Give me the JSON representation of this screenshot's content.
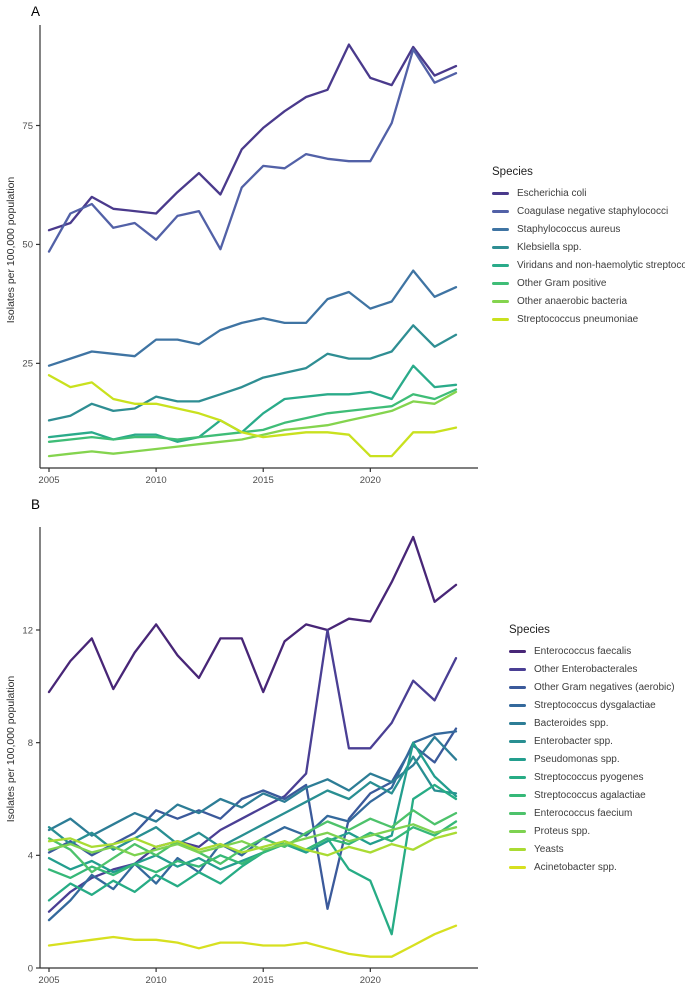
{
  "figure": {
    "background": "#ffffff"
  },
  "chart_data": [
    {
      "type": "line",
      "panel_label": "A",
      "ylabel": "Isolates per 100,000 population",
      "legend_title": "Species",
      "legend_position": "right",
      "grid": false,
      "xlim": [
        2005,
        2024
      ],
      "ylim": [
        3,
        95.5
      ],
      "x_ticks": [
        2005,
        2010,
        2015,
        2020
      ],
      "y_ticks": [
        25,
        50,
        75
      ],
      "x": [
        2005,
        2006,
        2007,
        2008,
        2009,
        2010,
        2011,
        2012,
        2013,
        2014,
        2015,
        2016,
        2017,
        2018,
        2019,
        2020,
        2021,
        2022,
        2023,
        2024
      ],
      "series": [
        {
          "name": "Escherichia coli",
          "color": "#4a3a8c",
          "values": [
            53,
            54.5,
            60,
            57.5,
            57,
            56.5,
            61,
            65,
            60.5,
            70,
            74.5,
            78,
            81,
            82.5,
            92,
            85,
            83.5,
            91.5,
            85.5,
            87.5
          ]
        },
        {
          "name": "Coagulase negative staphylococci",
          "color": "#5261a7",
          "values": [
            48.5,
            56.5,
            58.5,
            53.5,
            54.5,
            51,
            56,
            57,
            49,
            62,
            66.5,
            66,
            69,
            68,
            67.5,
            67.5,
            75.5,
            91,
            84,
            86
          ]
        },
        {
          "name": "Staphylococcus aureus",
          "color": "#3f74a3",
          "values": [
            24.5,
            26,
            27.5,
            27,
            26.5,
            30,
            30,
            29,
            32,
            33.5,
            34.5,
            33.5,
            33.5,
            38.5,
            40,
            36.5,
            38,
            44.5,
            39,
            41
          ]
        },
        {
          "name": "Klebsiella spp.",
          "color": "#2f8e93",
          "values": [
            13,
            14,
            16.5,
            15,
            15.5,
            18,
            17,
            17,
            18.5,
            20,
            22,
            23,
            24,
            27,
            26,
            26,
            27.5,
            33,
            28.5,
            31
          ]
        },
        {
          "name": "Viridans and non-haemolytic streptococci",
          "color": "#2aab8a",
          "values": [
            9.5,
            10,
            10.5,
            9,
            10,
            10,
            8.5,
            9.5,
            13,
            10.5,
            14.5,
            17.5,
            18,
            18.5,
            18.5,
            19,
            17.5,
            24.5,
            20,
            20.5
          ]
        },
        {
          "name": "Other Gram positive",
          "color": "#3fbd77",
          "values": [
            8.5,
            9,
            9.5,
            9,
            9.5,
            9.5,
            9,
            9.5,
            10,
            10.5,
            11,
            12.5,
            13.5,
            14.5,
            15,
            15.5,
            16,
            18.5,
            17.5,
            19.5
          ]
        },
        {
          "name": "Other anaerobic bacteria",
          "color": "#84d44e",
          "values": [
            5.5,
            6,
            6.5,
            6,
            6.5,
            7,
            7.5,
            8,
            8.5,
            9,
            10,
            11,
            11.5,
            12,
            13,
            14,
            15,
            17,
            16.5,
            19
          ]
        },
        {
          "name": "Streptococcus pneumoniae",
          "color": "#c9e11e",
          "values": [
            22.5,
            20,
            21,
            17.5,
            16.5,
            16.5,
            15.5,
            14.5,
            13,
            10.5,
            9.5,
            10,
            10.5,
            10.5,
            10,
            5.5,
            5.5,
            10.5,
            10.5,
            11.5
          ]
        }
      ]
    },
    {
      "type": "line",
      "panel_label": "B",
      "ylabel": "Isolates per 100,000 population",
      "legend_title": "Species",
      "legend_position": "right",
      "grid": false,
      "xlim": [
        2005,
        2024
      ],
      "ylim": [
        0,
        15.55
      ],
      "x_ticks": [
        2005,
        2010,
        2015,
        2020
      ],
      "y_ticks": [
        0,
        4,
        8,
        12
      ],
      "x": [
        2005,
        2006,
        2007,
        2008,
        2009,
        2010,
        2011,
        2012,
        2013,
        2014,
        2015,
        2016,
        2017,
        2018,
        2019,
        2020,
        2021,
        2022,
        2023,
        2024
      ],
      "series": [
        {
          "name": "Enterococcus faecalis",
          "color": "#482677",
          "values": [
            9.8,
            10.9,
            11.7,
            9.9,
            11.2,
            12.2,
            11.1,
            10.3,
            11.7,
            11.7,
            9.8,
            11.6,
            12.2,
            12,
            12.4,
            12.3,
            13.7,
            15.3,
            13,
            13.6
          ]
        },
        {
          "name": "Other Enterobacterales",
          "color": "#4a3f94",
          "values": [
            2,
            2.7,
            3.2,
            3.5,
            3.7,
            4.3,
            4.5,
            4.3,
            4.9,
            5.3,
            5.7,
            6.1,
            6.9,
            12,
            7.8,
            7.8,
            8.7,
            10.2,
            9.5,
            11
          ]
        },
        {
          "name": "Other Gram negatives (aerobic)",
          "color": "#3b5a9b",
          "values": [
            4.1,
            4.5,
            4,
            4.4,
            4.8,
            5.6,
            5.3,
            5.6,
            5.3,
            6,
            6.3,
            6,
            6.5,
            2.1,
            5.3,
            6.2,
            6.6,
            7.9,
            7.3,
            8.5
          ]
        },
        {
          "name": "Streptococcus dysgalactiae",
          "color": "#34699c",
          "values": [
            1.7,
            2.4,
            3.3,
            2.8,
            3.7,
            3,
            3.9,
            3.4,
            4.4,
            4,
            4.6,
            5,
            4.7,
            5.4,
            5.2,
            5.9,
            6.4,
            8,
            8.3,
            8.4
          ]
        },
        {
          "name": "Bacteroides spp.",
          "color": "#2d7d96",
          "values": [
            4.9,
            5.3,
            4.7,
            5.1,
            5.5,
            5.2,
            5.8,
            5.5,
            6,
            5.7,
            6.2,
            5.9,
            6.4,
            6.7,
            6.3,
            6.9,
            6.6,
            7.2,
            8.2,
            7.4
          ]
        },
        {
          "name": "Enterobacter spp.",
          "color": "#298f92",
          "values": [
            5,
            4.4,
            4.8,
            4.2,
            4.6,
            5,
            4.4,
            4.8,
            4.3,
            4.7,
            5.1,
            5.5,
            5.9,
            6.3,
            6,
            6.6,
            6.2,
            7.5,
            6.3,
            6.2
          ]
        },
        {
          "name": "Pseudomonas spp.",
          "color": "#239e8e",
          "values": [
            3.9,
            3.5,
            3.8,
            3.4,
            3.7,
            4,
            3.6,
            3.9,
            3.5,
            3.8,
            4.1,
            4.4,
            4.1,
            4.5,
            4.8,
            4.4,
            4.7,
            8,
            6.8,
            6.1
          ]
        },
        {
          "name": "Streptococcus pyogenes",
          "color": "#27ac85",
          "values": [
            2.4,
            3,
            2.6,
            3.1,
            2.7,
            3.3,
            2.9,
            3.4,
            3,
            3.6,
            4.1,
            4.5,
            4.2,
            4.6,
            3.5,
            3.1,
            1.2,
            6,
            6.5,
            6
          ]
        },
        {
          "name": "Streptococcus agalactiae",
          "color": "#36b878",
          "values": [
            3.5,
            3.2,
            3.6,
            3.3,
            3.7,
            3.4,
            3.8,
            3.6,
            4,
            3.7,
            4.1,
            4.4,
            4.2,
            4.6,
            4.4,
            4.8,
            4.5,
            5,
            4.7,
            5.2
          ]
        },
        {
          "name": "Enterococcus faecium",
          "color": "#4dc26b",
          "values": [
            4.6,
            4.2,
            3.4,
            3.9,
            4.4,
            4,
            4.5,
            4.1,
            3.7,
            4.2,
            4.6,
            4.3,
            4.8,
            5.2,
            4.9,
            5.3,
            5,
            5.6,
            5.1,
            5.5
          ]
        },
        {
          "name": "Proteus spp.",
          "color": "#7dd251",
          "values": [
            4.2,
            4.4,
            4.1,
            4.3,
            4,
            4.2,
            4.4,
            4.1,
            4.3,
            4.5,
            4.2,
            4.4,
            4.6,
            4.8,
            4.5,
            4.7,
            4.9,
            5.1,
            4.8,
            5
          ]
        },
        {
          "name": "Yeasts",
          "color": "#aadb33",
          "values": [
            4.5,
            4.6,
            4.3,
            4.4,
            4.6,
            4.3,
            4.5,
            4.2,
            4.4,
            4.1,
            4.3,
            4.5,
            4.2,
            4,
            4.3,
            4.1,
            4.4,
            4.2,
            4.6,
            4.8
          ]
        },
        {
          "name": "Acinetobacter spp.",
          "color": "#d7e020",
          "values": [
            0.8,
            0.9,
            1,
            1.1,
            1,
            1,
            0.9,
            0.7,
            0.9,
            0.9,
            0.8,
            0.8,
            0.9,
            0.7,
            0.5,
            0.4,
            0.4,
            0.8,
            1.2,
            1.5
          ]
        }
      ]
    }
  ]
}
